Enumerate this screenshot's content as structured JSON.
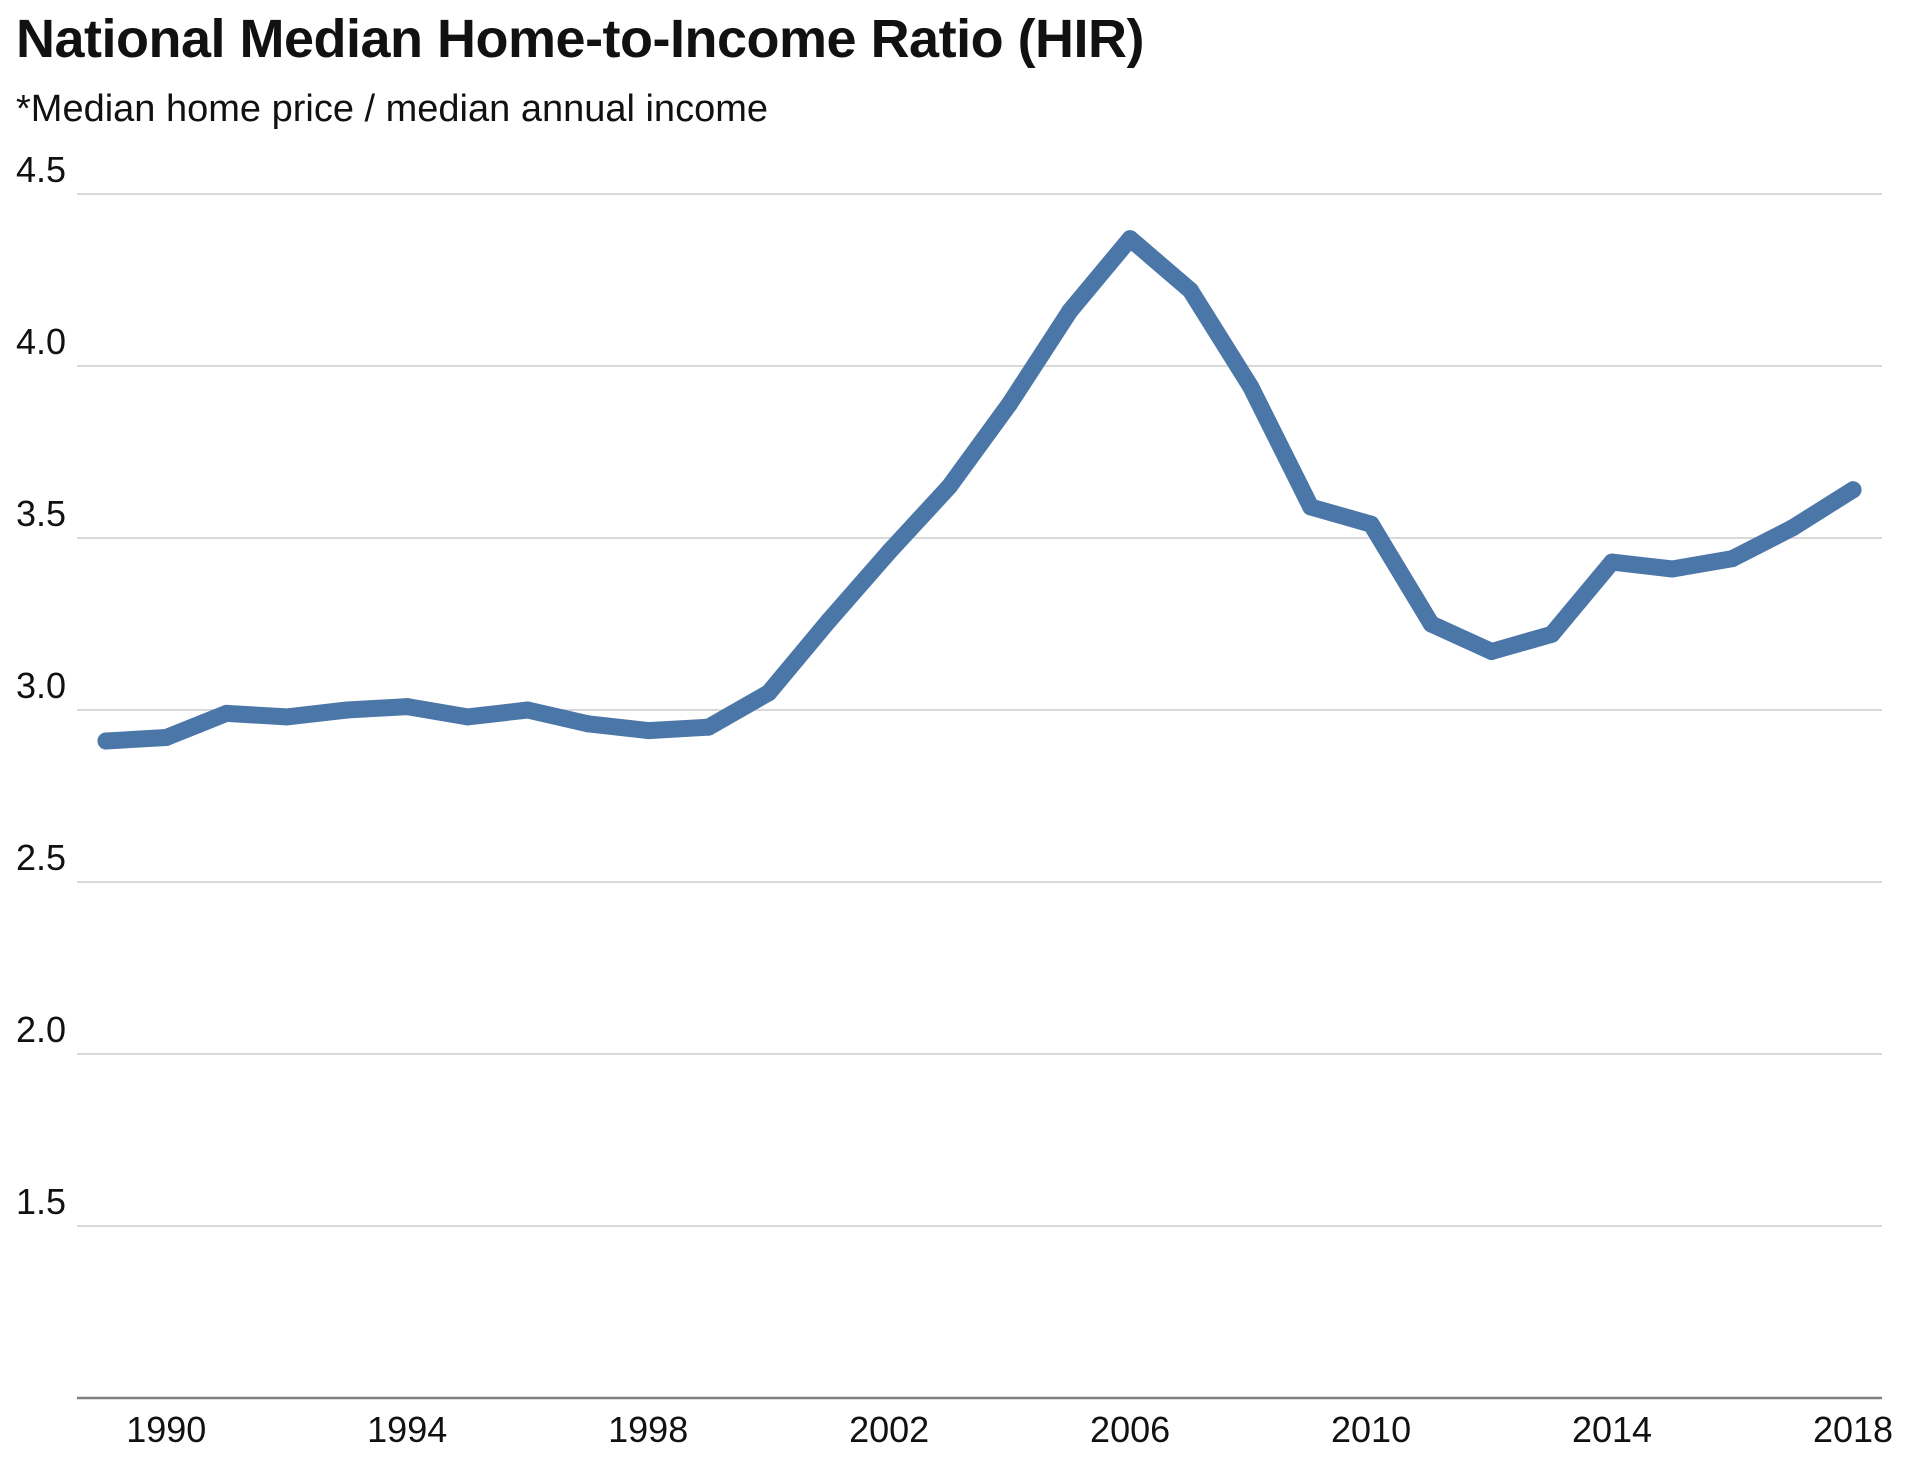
{
  "chart_data": {
    "type": "line",
    "title": "National Median Home-to-Income Ratio (HIR)",
    "subtitle": "*Median home price / median annual income",
    "xlabel": "",
    "ylabel": "",
    "x_range": [
      1989,
      2018
    ],
    "ylim": [
      1.0,
      4.5
    ],
    "y_ticks": [
      1.5,
      2.0,
      2.5,
      3.0,
      3.5,
      4.0,
      4.5
    ],
    "y_tick_labels": [
      "1.5",
      "2.0",
      "2.5",
      "3.0",
      "3.5",
      "4.0",
      "4.5"
    ],
    "x_ticks": [
      1990,
      1994,
      1998,
      2002,
      2006,
      2010,
      2014,
      2018
    ],
    "x_tick_labels": [
      "1990",
      "1994",
      "1998",
      "2002",
      "2006",
      "2010",
      "2014",
      "2018"
    ],
    "grid": "horizontal",
    "legend": "none",
    "line_color": "#4b76a8",
    "grid_color": "#d9d9d9",
    "axis_color": "#808080",
    "series": [
      {
        "x": [
          1989,
          1990,
          1991,
          1992,
          1993,
          1994,
          1995,
          1996,
          1997,
          1998,
          1999,
          2000,
          2001,
          2002,
          2003,
          2004,
          2005,
          2006,
          2007,
          2008,
          2009,
          2010,
          2011,
          2012,
          2013,
          2014,
          2015,
          2016,
          2017,
          2018
        ],
        "y": [
          2.91,
          2.92,
          2.99,
          2.98,
          3.0,
          3.01,
          2.98,
          3.0,
          2.96,
          2.94,
          2.95,
          3.05,
          3.26,
          3.46,
          3.65,
          3.89,
          4.16,
          4.37,
          4.22,
          3.94,
          3.59,
          3.54,
          3.25,
          3.17,
          3.22,
          3.43,
          3.41,
          3.44,
          3.53,
          3.64
        ]
      }
    ]
  }
}
